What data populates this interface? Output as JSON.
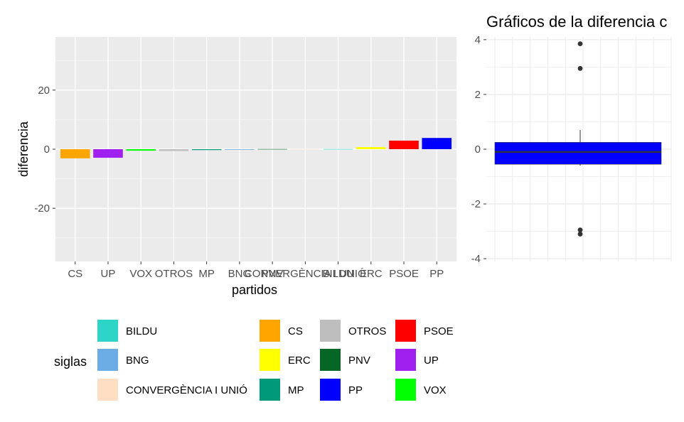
{
  "chart_data": [
    {
      "type": "bar",
      "xlabel": "partidos",
      "ylabel": "diferencia",
      "ylim": [
        -38,
        38
      ],
      "yticks": [
        -20,
        0,
        20
      ],
      "grid": true,
      "categories": [
        "CS",
        "UP",
        "VOX",
        "OTROS",
        "MP",
        "BNG",
        "PNV",
        "CONVERGÈNCIA I UNIÓ",
        "BILDU",
        "ERC",
        "PSOE",
        "PP"
      ],
      "values": [
        -3.1,
        -2.9,
        -0.5,
        -0.6,
        -0.3,
        -0.2,
        0.05,
        0.05,
        0.05,
        0.7,
        2.9,
        3.8
      ],
      "colors": [
        "#FFA500",
        "#A020F0",
        "#00FF00",
        "#BEBEBE",
        "#009A7A",
        "#6CACE4",
        "#056625",
        "#FFDEC4",
        "#2DD4C8",
        "#FFFF00",
        "#FF0000",
        "#0000FF"
      ],
      "legend": {
        "title": "siglas",
        "position": "bottom",
        "items": [
          {
            "label": "BILDU",
            "color": "#2DD4C8"
          },
          {
            "label": "BNG",
            "color": "#6CACE4"
          },
          {
            "label": "CONVERGÈNCIA I UNIÓ",
            "color": "#FFDEC4"
          },
          {
            "label": "CS",
            "color": "#FFA500"
          },
          {
            "label": "ERC",
            "color": "#FFFF00"
          },
          {
            "label": "MP",
            "color": "#009A7A"
          },
          {
            "label": "OTROS",
            "color": "#BEBEBE"
          },
          {
            "label": "PNV",
            "color": "#056625"
          },
          {
            "label": "PP",
            "color": "#0000FF"
          },
          {
            "label": "PSOE",
            "color": "#FF0000"
          },
          {
            "label": "UP",
            "color": "#A020F0"
          },
          {
            "label": "VOX",
            "color": "#00FF00"
          }
        ]
      }
    },
    {
      "type": "box",
      "title": "Gráficos de la diferencia c",
      "ylim": [
        -4.1,
        4.1
      ],
      "yticks": [
        -4,
        -2,
        0,
        2,
        4
      ],
      "q1": -0.55,
      "median": -0.1,
      "q3": 0.25,
      "whisker_low": -0.6,
      "whisker_high": 0.7,
      "outliers": [
        3.85,
        2.95,
        -2.95,
        -3.1
      ],
      "fill": "#0000FF",
      "grid": true
    }
  ]
}
